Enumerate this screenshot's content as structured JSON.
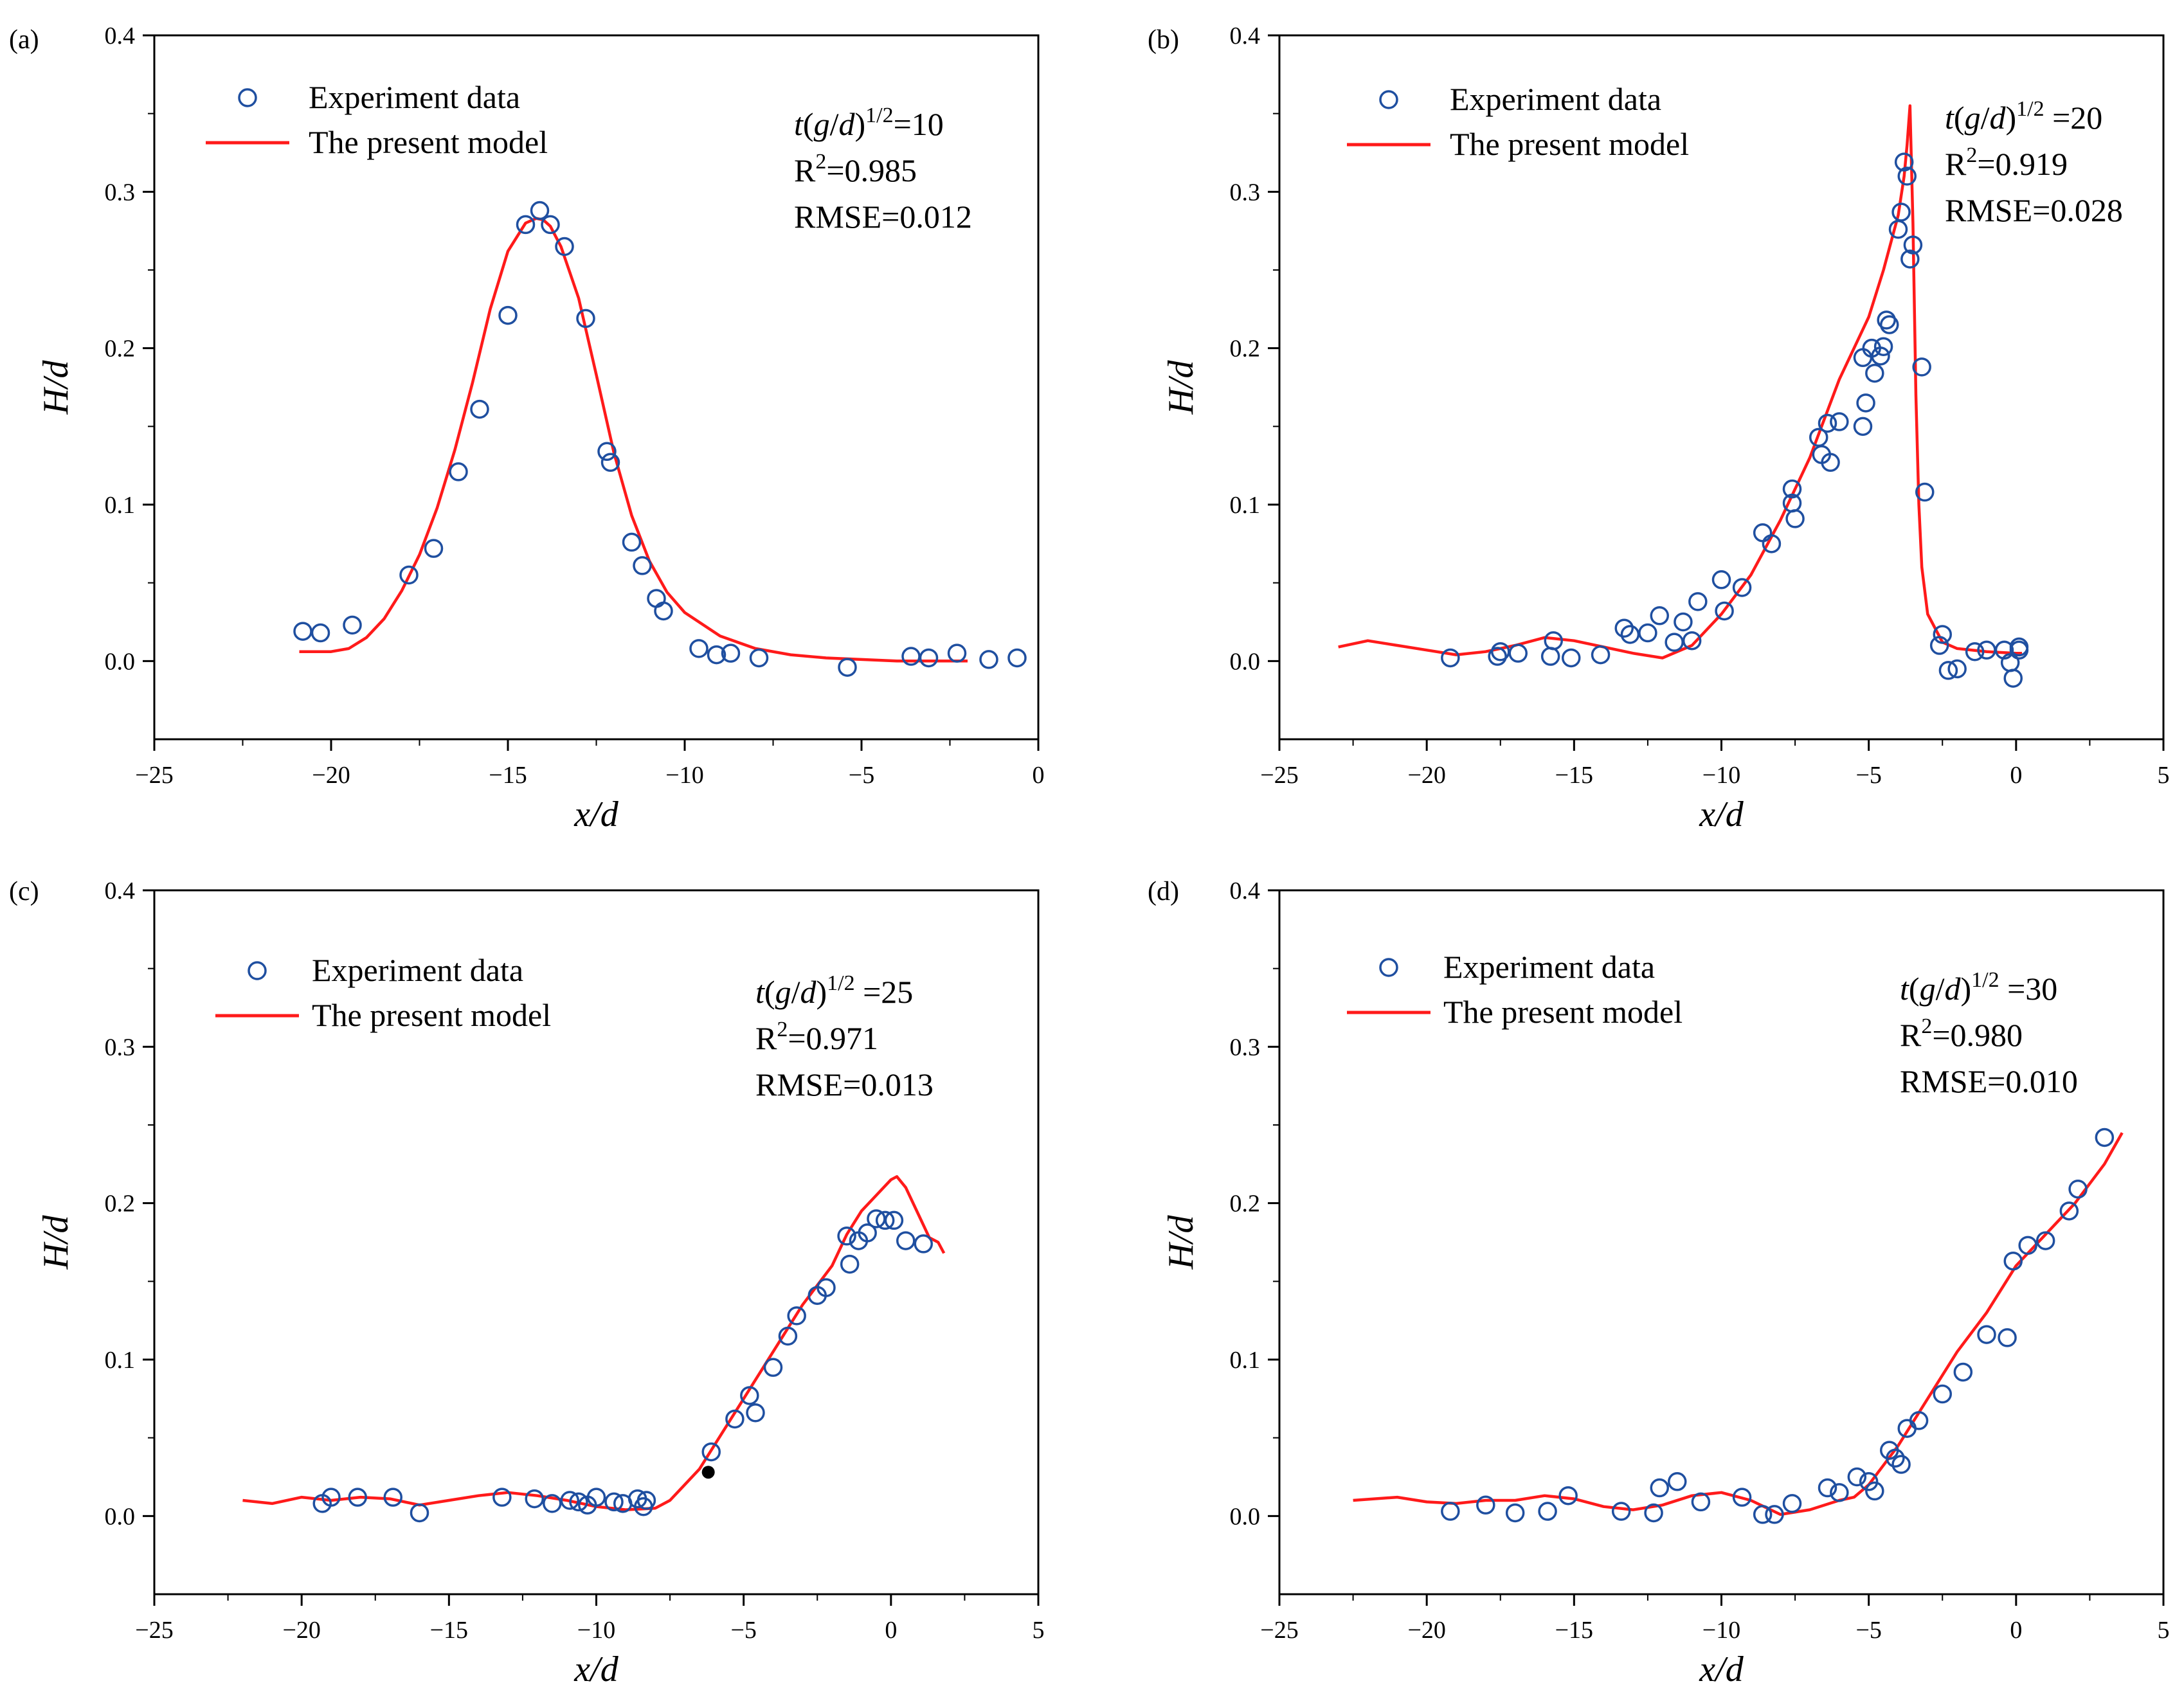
{
  "figure": {
    "legend": {
      "experiment": "Experiment data",
      "model": "The present model"
    },
    "axis": {
      "xlabel": "x/d",
      "ylabel": "H/d"
    },
    "colors": {
      "marker": "#1f4fa0",
      "model_line": "#ff1a1a",
      "axis": "#000000"
    }
  },
  "chart_data": [
    {
      "type": "scatter",
      "label": "(a)",
      "time_label": "10",
      "r2": "0.985",
      "rmse": "0.012",
      "xlim": [
        -25,
        0
      ],
      "ylim": [
        -0.05,
        0.4
      ],
      "xticks": [
        -25,
        -20,
        -15,
        -10,
        -5,
        0
      ],
      "yticks": [
        0.0,
        0.1,
        0.2,
        0.3,
        0.4
      ],
      "experiment": {
        "x": [
          -20.8,
          -20.3,
          -19.4,
          -17.8,
          -17.1,
          -16.4,
          -15.8,
          -15.0,
          -14.5,
          -14.1,
          -13.8,
          -13.4,
          -12.8,
          -12.2,
          -12.1,
          -11.5,
          -11.2,
          -10.8,
          -10.6,
          -9.6,
          -9.1,
          -8.7,
          -7.9,
          -5.4,
          -3.6,
          -3.1,
          -2.3,
          -1.4,
          -0.6
        ],
        "y": [
          0.019,
          0.018,
          0.023,
          0.055,
          0.072,
          0.121,
          0.161,
          0.221,
          0.279,
          0.288,
          0.279,
          0.265,
          0.219,
          0.134,
          0.127,
          0.076,
          0.061,
          0.04,
          0.032,
          0.008,
          0.004,
          0.005,
          0.002,
          -0.004,
          0.003,
          0.002,
          0.005,
          0.001,
          0.002
        ]
      },
      "model": {
        "x": [
          -20.9,
          -20.5,
          -20.0,
          -19.5,
          -19.0,
          -18.5,
          -18.0,
          -17.5,
          -17.0,
          -16.5,
          -16.0,
          -15.5,
          -15.0,
          -14.5,
          -14.2,
          -14.0,
          -13.8,
          -13.5,
          -13.0,
          -12.5,
          -12.0,
          -11.5,
          -11.0,
          -10.5,
          -10.0,
          -9.0,
          -8.0,
          -7.0,
          -6.0,
          -5.0,
          -4.0,
          -3.0,
          -2.0
        ],
        "y": [
          0.006,
          0.006,
          0.006,
          0.008,
          0.015,
          0.027,
          0.045,
          0.068,
          0.098,
          0.135,
          0.178,
          0.225,
          0.262,
          0.28,
          0.283,
          0.282,
          0.278,
          0.265,
          0.232,
          0.183,
          0.133,
          0.093,
          0.064,
          0.044,
          0.031,
          0.016,
          0.008,
          0.004,
          0.002,
          0.001,
          0.0,
          0.0,
          0.0
        ]
      }
    },
    {
      "type": "scatter",
      "label": "(b)",
      "time_label": "20",
      "r2": "0.919",
      "rmse": "0.028",
      "xlim": [
        -25,
        5
      ],
      "ylim": [
        -0.05,
        0.4
      ],
      "xticks": [
        -25,
        -20,
        -15,
        -10,
        -5,
        0,
        5
      ],
      "yticks": [
        0.0,
        0.1,
        0.2,
        0.3,
        0.4
      ],
      "experiment": {
        "x": [
          -19.2,
          -17.6,
          -17.5,
          -16.9,
          -15.8,
          -15.7,
          -15.1,
          -14.1,
          -13.3,
          -13.1,
          -12.5,
          -12.1,
          -11.6,
          -11.3,
          -11.0,
          -10.8,
          -10.0,
          -9.9,
          -9.3,
          -8.6,
          -8.3,
          -7.6,
          -7.6,
          -7.5,
          -6.7,
          -6.6,
          -6.4,
          -6.3,
          -6.0,
          -5.2,
          -5.2,
          -5.1,
          -4.9,
          -4.8,
          -4.6,
          -4.5,
          -4.4,
          -4.3,
          -4.0,
          -3.9,
          -3.8,
          -3.7,
          -3.6,
          -3.5,
          -3.2,
          -3.1,
          -2.6,
          -2.5,
          -2.3,
          -2.0,
          -1.4,
          -1.0,
          -0.4,
          -0.2,
          -0.1,
          0.1,
          0.1
        ],
        "y": [
          0.002,
          0.003,
          0.006,
          0.005,
          0.003,
          0.013,
          0.002,
          0.004,
          0.021,
          0.017,
          0.018,
          0.029,
          0.012,
          0.025,
          0.013,
          0.038,
          0.052,
          0.032,
          0.047,
          0.082,
          0.075,
          0.11,
          0.101,
          0.091,
          0.143,
          0.132,
          0.152,
          0.127,
          0.153,
          0.194,
          0.15,
          0.165,
          0.2,
          0.184,
          0.195,
          0.201,
          0.218,
          0.215,
          0.276,
          0.287,
          0.319,
          0.31,
          0.257,
          0.266,
          0.188,
          0.108,
          0.01,
          0.017,
          -0.006,
          -0.005,
          0.006,
          0.007,
          0.007,
          -0.001,
          -0.011,
          0.009,
          0.007
        ]
      },
      "model": {
        "x": [
          -23.0,
          -22.0,
          -21.0,
          -20.0,
          -19.0,
          -18.0,
          -17.0,
          -16.0,
          -15.0,
          -14.0,
          -13.0,
          -12.0,
          -11.0,
          -10.0,
          -9.0,
          -8.0,
          -7.0,
          -6.0,
          -5.0,
          -4.5,
          -4.0,
          -3.8,
          -3.7,
          -3.6,
          -3.5,
          -3.4,
          -3.3,
          -3.2,
          -3.0,
          -2.5,
          -2.0,
          -1.0,
          0.0,
          0.2
        ],
        "y": [
          0.009,
          0.013,
          0.01,
          0.007,
          0.004,
          0.006,
          0.01,
          0.015,
          0.013,
          0.009,
          0.005,
          0.002,
          0.01,
          0.03,
          0.055,
          0.09,
          0.13,
          0.18,
          0.22,
          0.25,
          0.285,
          0.31,
          0.33,
          0.355,
          0.28,
          0.17,
          0.1,
          0.06,
          0.03,
          0.012,
          0.008,
          0.006,
          0.005,
          0.005
        ]
      }
    },
    {
      "type": "scatter",
      "label": "(c)",
      "time_label": "25",
      "r2": "0.971",
      "rmse": "0.013",
      "xlim": [
        -25,
        5
      ],
      "ylim": [
        -0.05,
        0.4
      ],
      "xticks": [
        -25,
        -20,
        -15,
        -10,
        -5,
        0,
        5
      ],
      "yticks": [
        0.0,
        0.1,
        0.2,
        0.3,
        0.4
      ],
      "highlight_point": {
        "x": -6.2,
        "y": 0.028
      },
      "experiment": {
        "x": [
          -19.3,
          -19.0,
          -18.1,
          -16.9,
          -16.0,
          -13.2,
          -12.1,
          -11.5,
          -10.9,
          -10.6,
          -10.3,
          -10.0,
          -9.4,
          -9.1,
          -8.6,
          -8.4,
          -8.3,
          -6.1,
          -5.3,
          -4.8,
          -4.6,
          -4.0,
          -3.5,
          -3.2,
          -2.5,
          -2.2,
          -1.5,
          -1.4,
          -1.1,
          -0.8,
          -0.5,
          -0.2,
          0.1,
          0.5,
          1.1
        ],
        "y": [
          0.008,
          0.012,
          0.012,
          0.012,
          0.002,
          0.012,
          0.011,
          0.008,
          0.01,
          0.009,
          0.007,
          0.012,
          0.009,
          0.008,
          0.011,
          0.006,
          0.01,
          0.041,
          0.062,
          0.077,
          0.066,
          0.095,
          0.115,
          0.128,
          0.141,
          0.146,
          0.179,
          0.161,
          0.176,
          0.181,
          0.19,
          0.189,
          0.189,
          0.176,
          0.174
        ]
      },
      "model": {
        "x": [
          -22.0,
          -21.0,
          -20.0,
          -19.0,
          -18.0,
          -17.0,
          -16.0,
          -15.0,
          -14.0,
          -13.0,
          -12.0,
          -11.0,
          -10.0,
          -9.0,
          -8.0,
          -7.5,
          -7.0,
          -6.5,
          -6.0,
          -5.0,
          -4.0,
          -3.0,
          -2.0,
          -1.5,
          -1.0,
          -0.5,
          0.0,
          0.2,
          0.5,
          1.0,
          1.3,
          1.6,
          1.8
        ],
        "y": [
          0.01,
          0.008,
          0.012,
          0.01,
          0.012,
          0.011,
          0.007,
          0.01,
          0.013,
          0.015,
          0.013,
          0.01,
          0.006,
          0.004,
          0.005,
          0.01,
          0.02,
          0.03,
          0.045,
          0.075,
          0.105,
          0.135,
          0.16,
          0.18,
          0.195,
          0.205,
          0.215,
          0.217,
          0.21,
          0.19,
          0.178,
          0.175,
          0.168
        ]
      }
    },
    {
      "type": "scatter",
      "label": "(d)",
      "time_label": "30",
      "r2": "0.980",
      "rmse": "0.010",
      "xlim": [
        -25,
        5
      ],
      "ylim": [
        -0.05,
        0.4
      ],
      "xticks": [
        -25,
        -20,
        -15,
        -10,
        -5,
        0,
        5
      ],
      "yticks": [
        0.0,
        0.1,
        0.2,
        0.3,
        0.4
      ],
      "experiment": {
        "x": [
          -19.2,
          -18.0,
          -17.0,
          -15.9,
          -15.2,
          -13.4,
          -12.3,
          -12.1,
          -11.5,
          -10.7,
          -9.3,
          -8.6,
          -8.2,
          -7.6,
          -6.4,
          -6.0,
          -5.4,
          -5.0,
          -4.8,
          -4.3,
          -4.1,
          -3.9,
          -3.7,
          -3.3,
          -2.5,
          -1.8,
          -1.0,
          -0.3,
          -0.1,
          0.4,
          1.0,
          1.8,
          2.1,
          3.0
        ],
        "y": [
          0.003,
          0.007,
          0.002,
          0.003,
          0.013,
          0.003,
          0.002,
          0.018,
          0.022,
          0.009,
          0.012,
          0.001,
          0.001,
          0.008,
          0.018,
          0.015,
          0.025,
          0.022,
          0.016,
          0.042,
          0.037,
          0.033,
          0.056,
          0.061,
          0.078,
          0.092,
          0.116,
          0.114,
          0.163,
          0.173,
          0.176,
          0.195,
          0.209,
          0.242
        ]
      },
      "model": {
        "x": [
          -22.5,
          -21.0,
          -20.0,
          -19.0,
          -18.0,
          -17.0,
          -16.0,
          -15.0,
          -14.0,
          -13.0,
          -12.0,
          -11.0,
          -10.0,
          -9.0,
          -8.0,
          -7.0,
          -6.0,
          -5.5,
          -5.0,
          -4.0,
          -3.0,
          -2.0,
          -1.0,
          0.0,
          1.0,
          2.0,
          3.0,
          3.6
        ],
        "y": [
          0.01,
          0.012,
          0.009,
          0.008,
          0.01,
          0.01,
          0.013,
          0.011,
          0.006,
          0.004,
          0.007,
          0.013,
          0.015,
          0.01,
          0.001,
          0.004,
          0.01,
          0.012,
          0.02,
          0.045,
          0.075,
          0.105,
          0.13,
          0.16,
          0.18,
          0.2,
          0.225,
          0.245
        ]
      }
    }
  ]
}
